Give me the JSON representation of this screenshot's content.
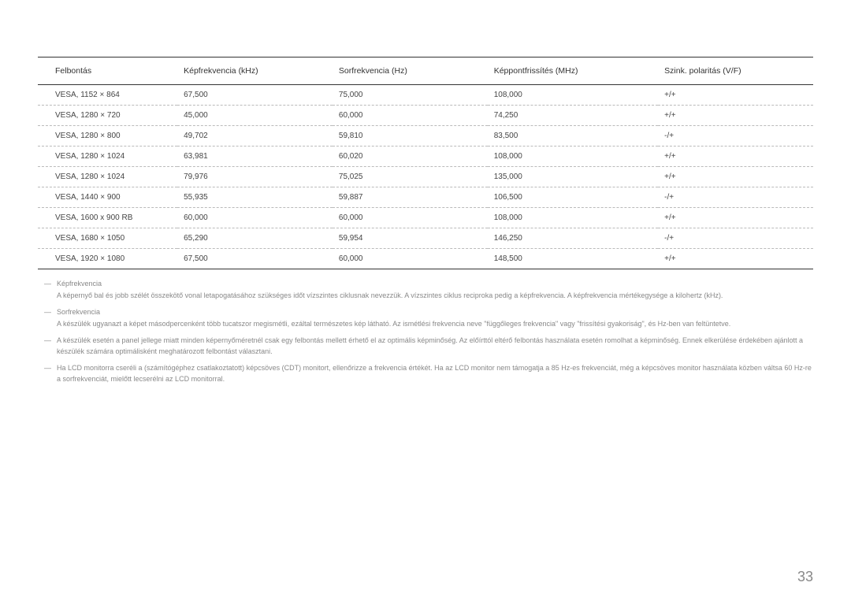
{
  "table": {
    "columns": [
      "Felbontás",
      "Képfrekvencia (kHz)",
      "Sorfrekvencia (Hz)",
      "Képpontfrissítés (MHz)",
      "Szink. polaritás (V/F)"
    ],
    "rows": [
      [
        "VESA, 1152 × 864",
        "67,500",
        "75,000",
        "108,000",
        "+/+"
      ],
      [
        "VESA, 1280 × 720",
        "45,000",
        "60,000",
        "74,250",
        "+/+"
      ],
      [
        "VESA, 1280 × 800",
        "49,702",
        "59,810",
        "83,500",
        "-/+"
      ],
      [
        "VESA, 1280 × 1024",
        "63,981",
        "60,020",
        "108,000",
        "+/+"
      ],
      [
        "VESA, 1280 × 1024",
        "79,976",
        "75,025",
        "135,000",
        "+/+"
      ],
      [
        "VESA, 1440 × 900",
        "55,935",
        "59,887",
        "106,500",
        "-/+"
      ],
      [
        "VESA, 1600 x 900 RB",
        "60,000",
        "60,000",
        "108,000",
        "+/+"
      ],
      [
        "VESA, 1680 × 1050",
        "65,290",
        "59,954",
        "146,250",
        "-/+"
      ],
      [
        "VESA, 1920 × 1080",
        "67,500",
        "60,000",
        "148,500",
        "+/+"
      ]
    ]
  },
  "notes": [
    {
      "title": "Képfrekvencia",
      "body": "A képernyő bal és jobb szélét összekötő vonal letapogatásához szükséges időt vízszintes ciklusnak nevezzük. A vízszintes ciklus reciproka pedig a képfrekvencia. A képfrekvencia mértékegysége a kilohertz (kHz)."
    },
    {
      "title": "Sorfrekvencia",
      "body": "A készülék ugyanazt a képet másodpercenként több tucatszor megismétli, ezáltal természetes kép látható. Az ismétlési frekvencia neve \"függőleges frekvencia\" vagy \"frissítési gyakoriság\", és Hz-ben van feltüntetve."
    },
    {
      "title": "",
      "body": "A készülék esetén a panel jellege miatt minden képernyőméretnél csak egy felbontás mellett érhető el az optimális képminőség. Az előírttól eltérő felbontás használata esetén romolhat a képminőség. Ennek elkerülése érdekében ajánlott a készülék számára optimálisként meghatározott felbontást választani."
    },
    {
      "title": "",
      "body": "Ha LCD monitorra cseréli a (számítógéphez csatlakoztatott) képcsöves (CDT) monitort, ellenőrizze a frekvencia értékét. Ha az LCD monitor nem támogatja a 85 Hz-es frekvenciát, még a képcsöves monitor használata közben váltsa 60 Hz-re a sorfrekvenciát, mielőtt lecserélni az LCD monitorral."
    }
  ],
  "page_number": "33"
}
